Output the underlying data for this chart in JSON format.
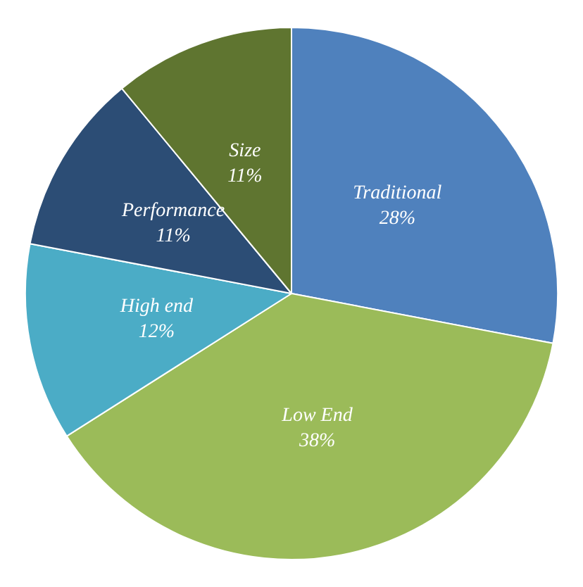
{
  "chart_data": {
    "type": "pie",
    "categories": [
      "Traditional",
      "Low End",
      "High end",
      "Performance",
      "Size"
    ],
    "values": [
      28,
      38,
      12,
      11,
      11
    ],
    "value_labels": [
      "28%",
      "38%",
      "12%",
      "11%",
      "11%"
    ],
    "colors": [
      "#4f81bd",
      "#9bbb59",
      "#4bacc6",
      "#2c4d75",
      "#5f7530"
    ],
    "legend": false
  }
}
